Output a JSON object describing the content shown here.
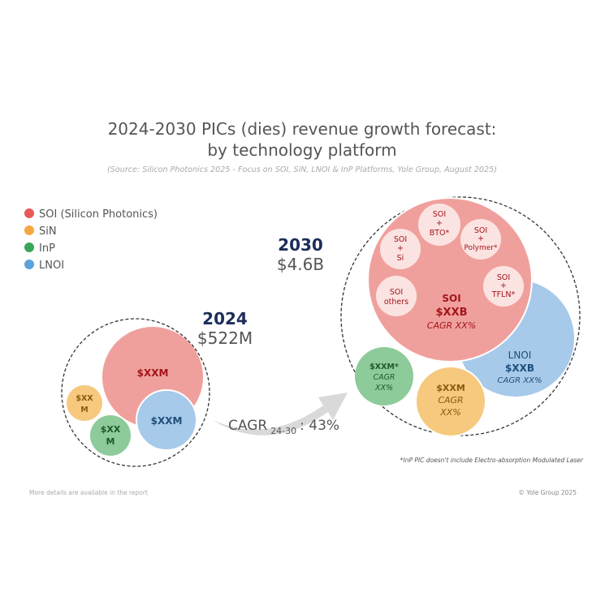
{
  "chart_data": {
    "type": "bubble",
    "title_line1": "2024-2030 PICs (dies) revenue growth forecast:",
    "title_line2": "by technology platform",
    "subtitle": "(Source: Silicon Photonics 2025 - Focus on SOI, SiN, LNOI & InP Platforms, Yole Group, August 2025)",
    "legend": [
      {
        "label": "SOI (Silicon Photonics)",
        "color": "#e85a5a"
      },
      {
        "label": "SiN",
        "color": "#f5a742"
      },
      {
        "label": "InP",
        "color": "#3aa55a"
      },
      {
        "label": "LNOI",
        "color": "#5ba3dc"
      }
    ],
    "years": [
      {
        "year": "2024",
        "total": "$522M",
        "bubbles": [
          {
            "platform": "SOI",
            "line1": "$XXM"
          },
          {
            "platform": "LNOI",
            "line1": "$XXM"
          },
          {
            "platform": "SiN",
            "line1": "$XX",
            "line2": "M"
          },
          {
            "platform": "InP",
            "line1": "$XX",
            "line2": "M"
          }
        ]
      },
      {
        "year": "2030",
        "total": "$4.6B",
        "bubbles": [
          {
            "platform": "SOI",
            "line1": "SOI",
            "line2": "$XXB",
            "line3": "CAGR XX%"
          },
          {
            "platform": "LNOI",
            "line1": "LNOI",
            "line2": "$XXB",
            "line3": "CAGR XX%"
          },
          {
            "platform": "InP",
            "line1": "$XXM*",
            "line2": "CAGR",
            "line3": "XX%"
          },
          {
            "platform": "SiN",
            "line1": "$XXM",
            "line2": "CAGR",
            "line3": "XX%"
          }
        ],
        "soi_subsegments": [
          {
            "line1": "SOI",
            "line2": "+",
            "line3": "BTO*"
          },
          {
            "line1": "SOI",
            "line2": "+",
            "line3": "Polymer*"
          },
          {
            "line1": "SOI",
            "line2": "+",
            "line3": "Si"
          },
          {
            "line1": "SOI",
            "line2": "others"
          },
          {
            "line1": "SOI",
            "line2": "+",
            "line3": "TFLN*"
          }
        ]
      }
    ],
    "cagr": {
      "label": "CAGR",
      "sub": "24-30",
      "value": ": 43%"
    },
    "footnote": "*InP PIC doesn't include Electro-absorption Modulated Laser",
    "footer_left": "More details are available in the report",
    "footer_right": "© Yole Group 2025"
  },
  "colors": {
    "soi_fill": "#f0a09c",
    "soi_text": "#a3151b",
    "lnoi_fill": "#a7c9ea",
    "lnoi_text": "#1f4f7a",
    "sin_fill": "#f6c97e",
    "sin_text": "#8a5a10",
    "inp_fill": "#8dcb9a",
    "inp_text": "#1f5a2e",
    "sub_fill": "#fbe3e1",
    "sub_text": "#a3151b",
    "navy": "#1c2d5a",
    "gray_text": "#555555"
  }
}
